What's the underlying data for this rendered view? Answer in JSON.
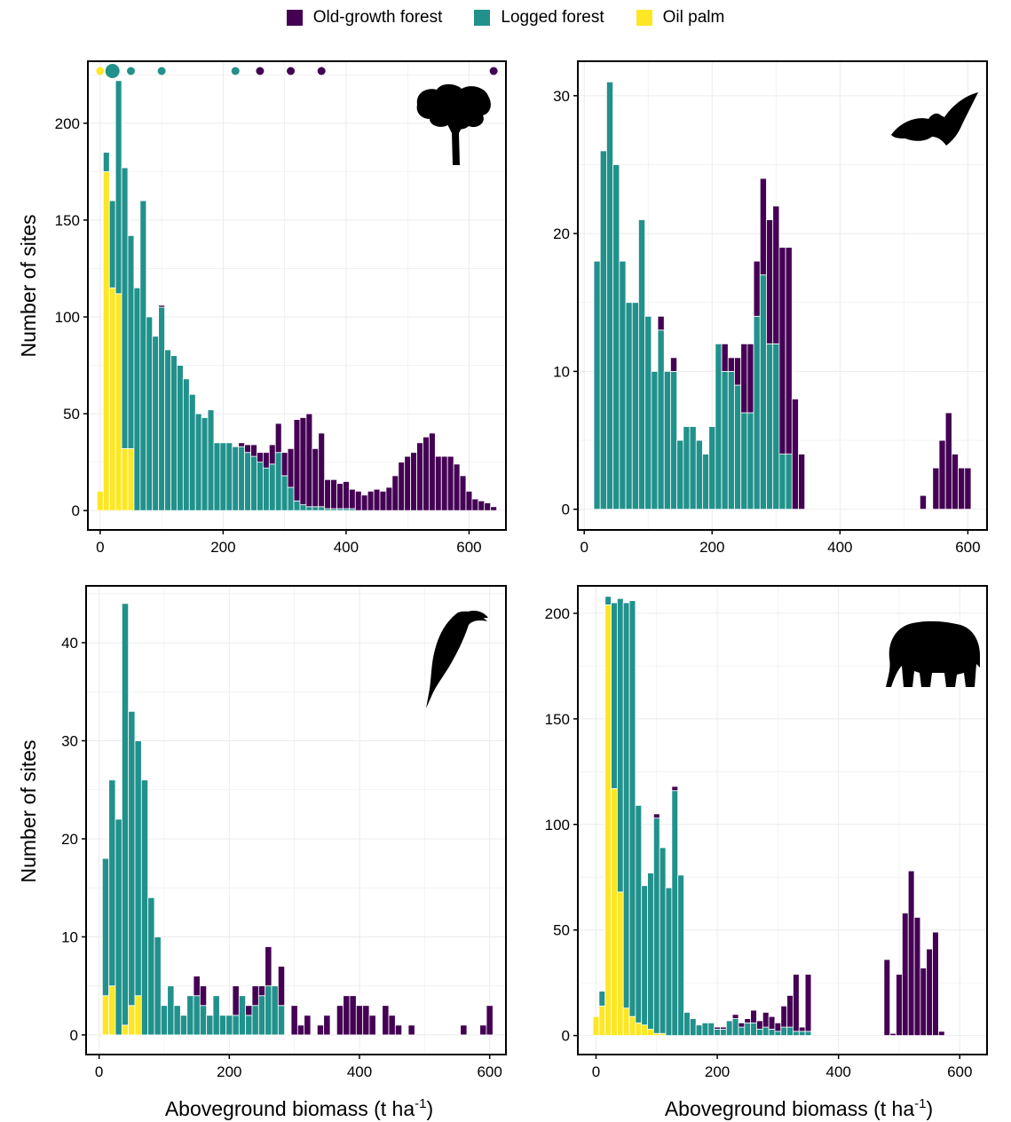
{
  "legend": [
    {
      "label": "Old-growth forest",
      "color": "#440154"
    },
    {
      "label": "Logged forest",
      "color": "#21918c"
    },
    {
      "label": "Oil palm",
      "color": "#fde725"
    }
  ],
  "axis_titles": {
    "y": "Number of sites",
    "x": "Aboveground biomass (t ha",
    "x_sup": "-1",
    "x_close": ")"
  },
  "chart_data": [
    {
      "type": "bar",
      "stacked": true,
      "xlim": [
        -20,
        660
      ],
      "ylim": [
        -10,
        232
      ],
      "x_ticks": [
        0,
        200,
        400,
        600
      ],
      "y_ticks": [
        0,
        50,
        100,
        150,
        200
      ],
      "bin_width": 10,
      "grid": true,
      "icon": "tree-icon",
      "x": [
        0,
        10,
        20,
        30,
        40,
        50,
        60,
        70,
        80,
        90,
        100,
        110,
        120,
        130,
        140,
        150,
        160,
        170,
        180,
        190,
        200,
        210,
        220,
        230,
        240,
        250,
        260,
        270,
        280,
        290,
        300,
        310,
        320,
        330,
        340,
        350,
        360,
        370,
        380,
        390,
        400,
        410,
        420,
        430,
        440,
        450,
        460,
        470,
        480,
        490,
        500,
        510,
        520,
        530,
        540,
        550,
        560,
        570,
        580,
        590,
        600,
        610,
        620,
        630,
        640
      ],
      "series": [
        {
          "name": "Oil palm",
          "values": [
            10,
            175,
            115,
            112,
            32,
            32,
            0,
            0,
            0,
            0,
            0,
            0,
            0,
            0,
            0,
            0,
            0,
            0,
            0,
            0,
            0,
            0,
            0,
            0,
            0,
            0,
            0,
            0,
            0,
            0,
            0,
            0,
            0,
            0,
            0,
            0,
            0,
            0,
            0,
            0,
            0,
            0,
            0,
            0,
            0,
            0,
            0,
            0,
            0,
            0,
            0,
            0,
            0,
            0,
            0,
            0,
            0,
            0,
            0,
            0,
            0,
            0,
            0,
            0,
            0
          ]
        },
        {
          "name": "Logged forest",
          "values": [
            0,
            10,
            45,
            110,
            145,
            110,
            115,
            160,
            100,
            90,
            105,
            83,
            80,
            75,
            68,
            60,
            50,
            48,
            52,
            35,
            35,
            35,
            33,
            33,
            30,
            28,
            25,
            22,
            24,
            30,
            18,
            12,
            5,
            3,
            2,
            2,
            2,
            1,
            1,
            1,
            1,
            1,
            0,
            0,
            0,
            0,
            0,
            0,
            0,
            0,
            0,
            0,
            0,
            0,
            0,
            0,
            0,
            0,
            0,
            0,
            0,
            0,
            0,
            0,
            0
          ]
        },
        {
          "name": "Old-growth forest",
          "values": [
            0,
            0,
            0,
            0,
            0,
            0,
            0,
            0,
            0,
            0,
            1,
            0,
            0,
            0,
            0,
            0,
            0,
            0,
            0,
            0,
            0,
            0,
            0,
            2,
            4,
            6,
            5,
            8,
            10,
            15,
            12,
            20,
            42,
            45,
            48,
            30,
            38,
            15,
            15,
            13,
            14,
            10,
            10,
            8,
            10,
            11,
            10,
            12,
            18,
            25,
            28,
            30,
            35,
            38,
            40,
            28,
            28,
            28,
            24,
            18,
            10,
            6,
            5,
            4,
            2
          ]
        }
      ],
      "top_dots": [
        {
          "x": 0,
          "group": "Oil palm",
          "size": "small"
        },
        {
          "x": 20,
          "group": "Logged forest",
          "size": "large"
        },
        {
          "x": 50,
          "group": "Logged forest",
          "size": "small"
        },
        {
          "x": 100,
          "group": "Logged forest",
          "size": "small"
        },
        {
          "x": 220,
          "group": "Logged forest",
          "size": "small"
        },
        {
          "x": 260,
          "group": "Old-growth forest",
          "size": "small"
        },
        {
          "x": 310,
          "group": "Old-growth forest",
          "size": "small"
        },
        {
          "x": 360,
          "group": "Old-growth forest",
          "size": "small"
        },
        {
          "x": 640,
          "group": "Old-growth forest",
          "size": "small"
        }
      ]
    },
    {
      "type": "bar",
      "stacked": true,
      "xlim": [
        -10,
        630
      ],
      "ylim": [
        -1.5,
        32.5
      ],
      "x_ticks": [
        0,
        200,
        400,
        600
      ],
      "y_ticks": [
        0,
        10,
        20,
        30
      ],
      "bin_width": 10,
      "grid": true,
      "icon": "bat-icon",
      "x": [
        20,
        30,
        40,
        50,
        60,
        70,
        80,
        90,
        100,
        110,
        120,
        130,
        140,
        150,
        160,
        170,
        180,
        190,
        200,
        210,
        220,
        230,
        240,
        250,
        260,
        270,
        280,
        290,
        300,
        310,
        320,
        330,
        340,
        350,
        360,
        370,
        530,
        550,
        560,
        570,
        580,
        590,
        600
      ],
      "series": [
        {
          "name": "Logged forest",
          "values": [
            18,
            26,
            31,
            25,
            18,
            15,
            15,
            21,
            14,
            10,
            13,
            10,
            10,
            5,
            6,
            6,
            5,
            4,
            6,
            12,
            10,
            10,
            9,
            7,
            7,
            14,
            17,
            12,
            12,
            4,
            4,
            0,
            0,
            0,
            0,
            0,
            0,
            0,
            0,
            0,
            0,
            0,
            0
          ]
        },
        {
          "name": "Old-growth forest",
          "values": [
            0,
            0,
            0,
            0,
            0,
            0,
            0,
            0,
            0,
            0,
            1,
            0,
            1,
            0,
            0,
            0,
            0,
            0,
            0,
            0,
            2,
            1,
            2,
            5,
            5,
            4,
            7,
            9,
            10,
            15,
            15,
            8,
            4,
            0,
            0,
            0,
            1,
            3,
            5,
            7,
            4,
            3,
            3
          ]
        }
      ]
    },
    {
      "type": "bar",
      "stacked": true,
      "xlim": [
        -20,
        625
      ],
      "ylim": [
        -2,
        45.8
      ],
      "x_ticks": [
        0,
        200,
        400,
        600
      ],
      "y_ticks": [
        0,
        10,
        20,
        30,
        40
      ],
      "bin_width": 10,
      "grid": true,
      "icon": "hornbill-icon",
      "x": [
        10,
        20,
        30,
        40,
        50,
        60,
        70,
        80,
        90,
        100,
        110,
        120,
        130,
        140,
        150,
        160,
        170,
        180,
        190,
        200,
        210,
        220,
        230,
        240,
        250,
        260,
        270,
        280,
        300,
        310,
        320,
        330,
        340,
        350,
        360,
        370,
        380,
        390,
        400,
        410,
        420,
        430,
        440,
        450,
        460,
        470,
        480,
        560,
        590,
        600
      ],
      "series": [
        {
          "name": "Oil palm",
          "values": [
            4,
            5,
            0,
            1,
            3,
            4,
            0,
            0,
            0,
            0,
            0,
            0,
            0,
            0,
            0,
            0,
            0,
            0,
            0,
            0,
            0,
            0,
            0,
            0,
            0,
            0,
            0,
            0,
            0,
            0,
            0,
            0,
            0,
            0,
            0,
            0,
            0,
            0,
            0,
            0,
            0,
            0,
            0,
            0,
            0,
            0,
            0,
            0,
            0,
            0
          ]
        },
        {
          "name": "Logged forest",
          "values": [
            14,
            21,
            22,
            43,
            30,
            26,
            26,
            14,
            10,
            3,
            5,
            3,
            2,
            4,
            4,
            3,
            2,
            4,
            2,
            2,
            2,
            4,
            2,
            3,
            4,
            5,
            5,
            3,
            0,
            0,
            0,
            0,
            0,
            0,
            0,
            0,
            0,
            0,
            0,
            0,
            0,
            0,
            0,
            0,
            0,
            0,
            0,
            0,
            0,
            0
          ]
        },
        {
          "name": "Old-growth forest",
          "values": [
            0,
            0,
            0,
            0,
            0,
            0,
            0,
            0,
            0,
            0,
            0,
            0,
            0,
            0,
            2,
            2,
            0,
            0,
            0,
            0,
            3,
            0,
            1,
            2,
            1,
            4,
            0,
            4,
            3,
            1,
            2,
            0,
            1,
            2,
            0,
            3,
            4,
            4,
            3,
            3,
            2,
            0,
            3,
            2,
            1,
            0,
            1,
            1,
            1,
            3
          ]
        }
      ]
    },
    {
      "type": "bar",
      "stacked": true,
      "xlim": [
        -30,
        645
      ],
      "ylim": [
        -9,
        213
      ],
      "x_ticks": [
        0,
        200,
        400,
        600
      ],
      "y_ticks": [
        0,
        50,
        100,
        150,
        200
      ],
      "bin_width": 10,
      "grid": true,
      "icon": "elephant-icon",
      "x": [
        0,
        10,
        20,
        30,
        40,
        50,
        60,
        70,
        80,
        90,
        100,
        110,
        120,
        130,
        140,
        150,
        160,
        170,
        180,
        190,
        200,
        210,
        220,
        230,
        240,
        250,
        260,
        270,
        280,
        290,
        300,
        310,
        320,
        330,
        340,
        350,
        360,
        370,
        480,
        490,
        500,
        510,
        520,
        530,
        540,
        550,
        560,
        570,
        580
      ],
      "series": [
        {
          "name": "Oil palm",
          "values": [
            9,
            14,
            204,
            117,
            68,
            13,
            9,
            6,
            5,
            3,
            1,
            1,
            0,
            0,
            0,
            0,
            0,
            0,
            0,
            0,
            0,
            0,
            0,
            0,
            0,
            0,
            0,
            0,
            0,
            0,
            0,
            0,
            0,
            0,
            0,
            0,
            0,
            0,
            0,
            0,
            0,
            0,
            0,
            0,
            0,
            0,
            0,
            0,
            0
          ]
        },
        {
          "name": "Logged forest",
          "values": [
            0,
            7,
            4,
            88,
            139,
            192,
            197,
            103,
            66,
            74,
            102,
            88,
            70,
            116,
            76,
            11,
            8,
            5,
            6,
            6,
            3,
            3,
            7,
            8,
            4,
            6,
            6,
            3,
            4,
            3,
            2,
            4,
            4,
            2,
            2,
            2,
            0,
            0,
            0,
            0,
            0,
            0,
            0,
            0,
            0,
            0,
            0,
            0,
            0
          ]
        },
        {
          "name": "Old-growth forest",
          "values": [
            0,
            0,
            0,
            0,
            0,
            0,
            0,
            0,
            0,
            0,
            2,
            0,
            0,
            2,
            0,
            0,
            0,
            0,
            0,
            0,
            1,
            1,
            0,
            2,
            2,
            2,
            6,
            4,
            7,
            6,
            4,
            10,
            15,
            27,
            2,
            27,
            0,
            0,
            36,
            1,
            29,
            58,
            78,
            56,
            32,
            41,
            49,
            2,
            0
          ]
        }
      ]
    }
  ]
}
